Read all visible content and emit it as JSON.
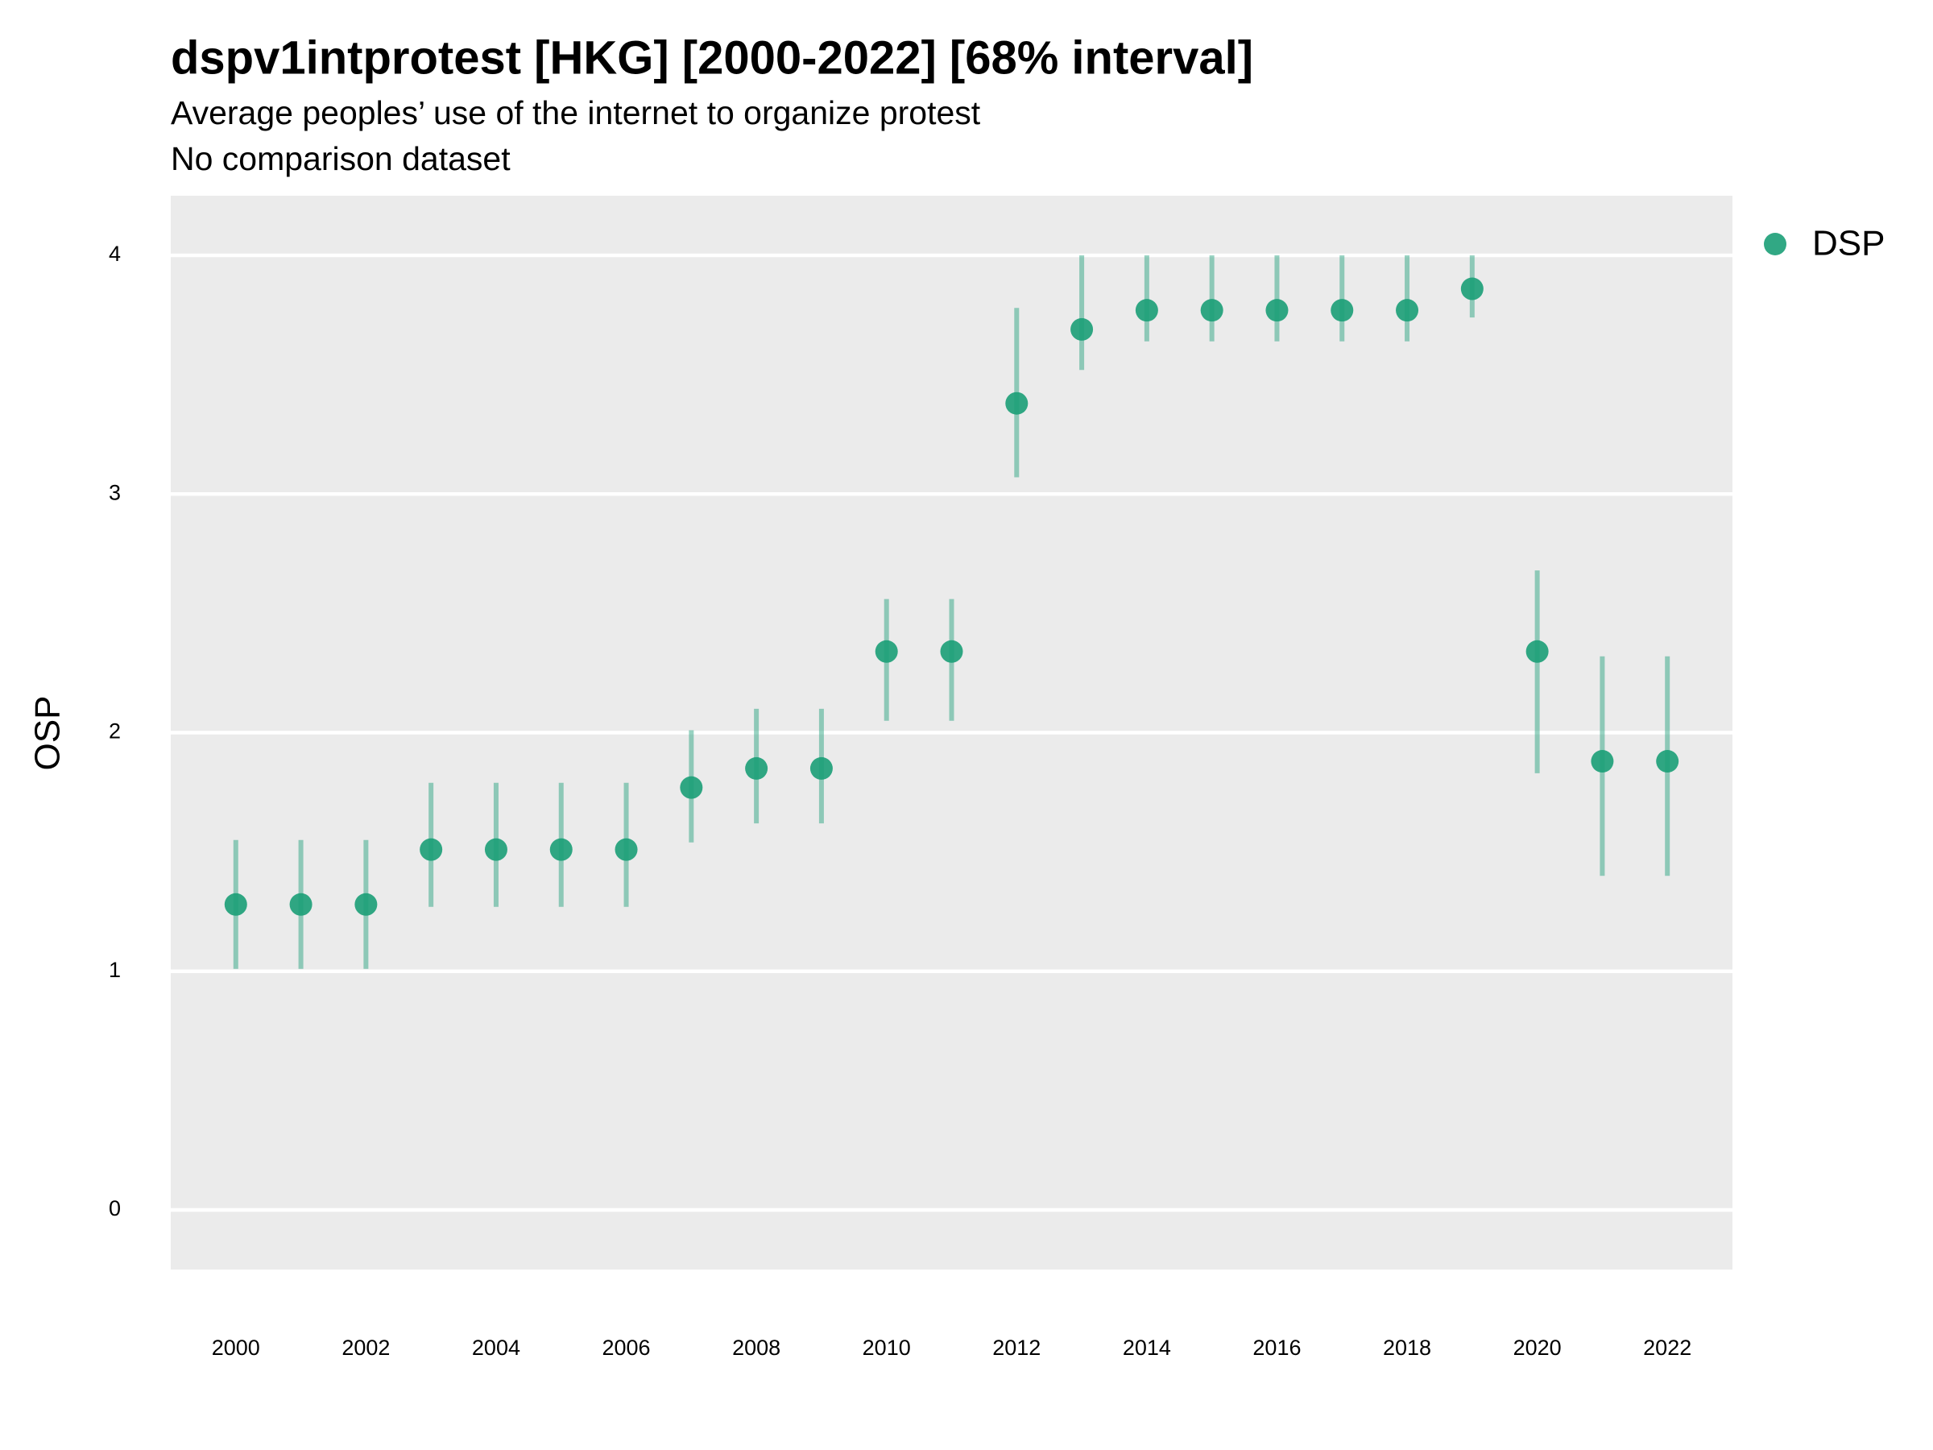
{
  "chart_data": {
    "type": "errorpoint",
    "title": "dspv1intprotest [HKG] [2000-2022] [68% interval]",
    "subtitle": "Average peoples’ use of the internet to organize protest",
    "subtitle2": "No comparison dataset",
    "y_label": "OSP",
    "x": [
      2000,
      2001,
      2002,
      2003,
      2004,
      2005,
      2006,
      2007,
      2008,
      2009,
      2010,
      2011,
      2012,
      2013,
      2014,
      2015,
      2016,
      2017,
      2018,
      2019,
      2020,
      2021,
      2022
    ],
    "series": [
      {
        "name": "DSP",
        "color": "#1b9e77",
        "values": [
          1.28,
          1.28,
          1.28,
          1.51,
          1.51,
          1.51,
          1.51,
          1.77,
          1.85,
          1.85,
          2.34,
          2.34,
          3.38,
          3.69,
          3.77,
          3.77,
          3.77,
          3.77,
          3.77,
          3.86,
          2.34,
          1.88,
          1.88
        ],
        "lower": [
          1.01,
          1.01,
          1.01,
          1.27,
          1.27,
          1.27,
          1.27,
          1.54,
          1.62,
          1.62,
          2.05,
          2.05,
          3.07,
          3.52,
          3.64,
          3.64,
          3.64,
          3.64,
          3.64,
          3.74,
          1.83,
          1.4,
          1.4
        ],
        "upper": [
          1.55,
          1.55,
          1.55,
          1.79,
          1.79,
          1.79,
          1.79,
          2.01,
          2.1,
          2.1,
          2.56,
          2.56,
          3.78,
          4.0,
          4.0,
          4.0,
          4.0,
          4.0,
          4.0,
          4.0,
          2.68,
          2.32,
          2.32
        ]
      }
    ],
    "xlim": [
      1999,
      2023
    ],
    "xticks": [
      2000,
      2002,
      2004,
      2006,
      2008,
      2010,
      2012,
      2014,
      2016,
      2018,
      2020,
      2022
    ],
    "ylim": [
      -0.25,
      4.25
    ],
    "yticks": [
      0,
      1,
      2,
      3,
      4
    ],
    "grid": true,
    "legend": "right"
  }
}
